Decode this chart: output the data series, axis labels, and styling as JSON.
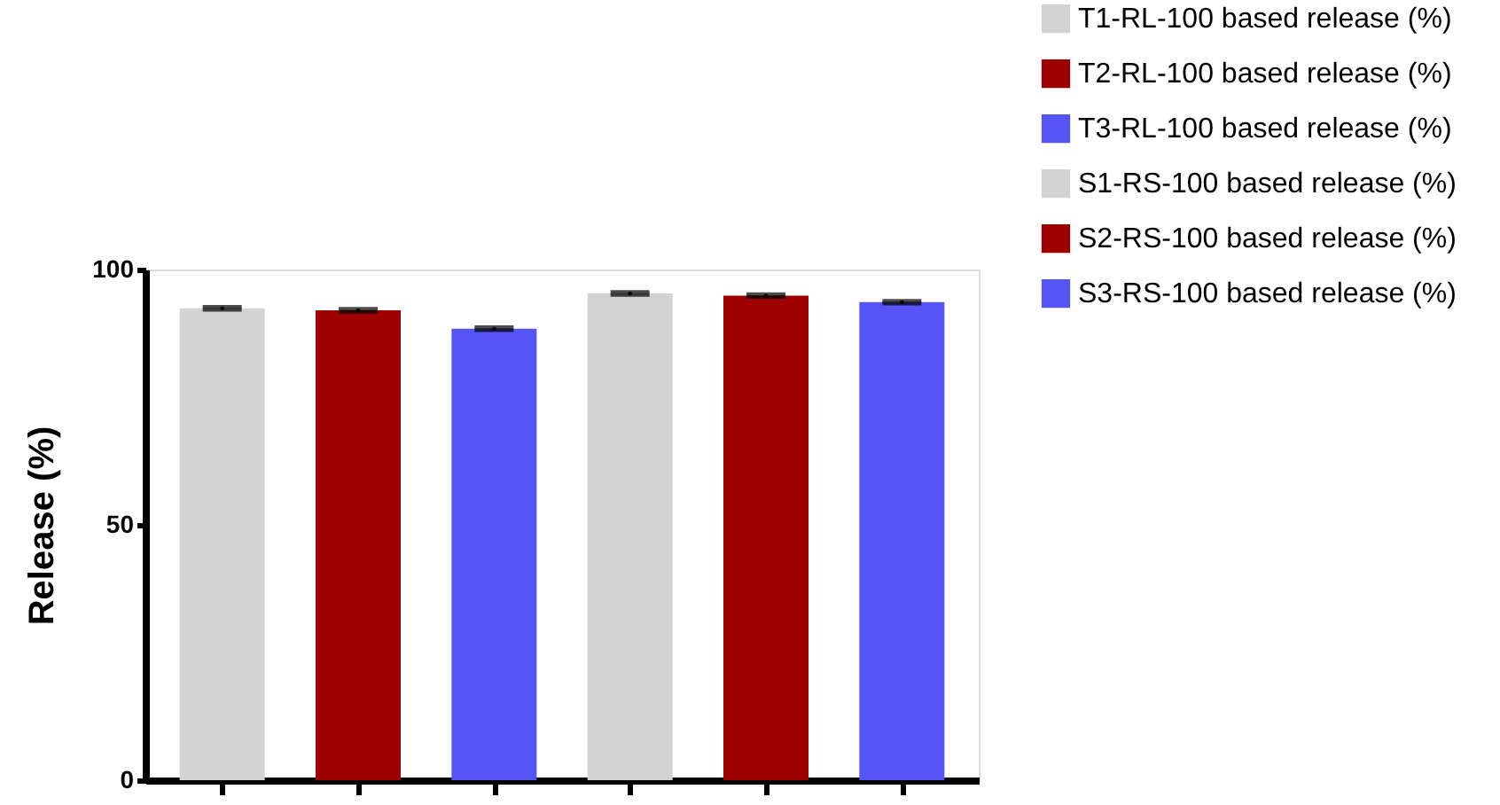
{
  "chart_data": {
    "type": "bar",
    "ylabel": "Release (%)",
    "categories": [
      null,
      null,
      null,
      null,
      null,
      null
    ],
    "series": [
      {
        "name": "T1-RL-100 based release (%)",
        "color": "#d3d3d3",
        "values": [
          92.4,
          null,
          null,
          null,
          null,
          null
        ],
        "errors": [
          0.3,
          null,
          null,
          null,
          null,
          null
        ]
      },
      {
        "name": "T2-RL-100 based release (%)",
        "color": "#9e0000",
        "values": [
          null,
          92.0,
          null,
          null,
          null,
          null
        ],
        "errors": [
          null,
          0.3,
          null,
          null,
          null,
          null
        ]
      },
      {
        "name": "T3-RL-100 based release (%)",
        "color": "#5555f5",
        "values": [
          null,
          null,
          88.4,
          null,
          null,
          null
        ],
        "errors": [
          null,
          null,
          0.3,
          null,
          null,
          null
        ]
      },
      {
        "name": "S1-RS-100 based release (%)",
        "color": "#d3d3d3",
        "values": [
          null,
          null,
          null,
          95.3,
          null,
          null
        ],
        "errors": [
          null,
          null,
          null,
          0.3,
          null,
          null
        ]
      },
      {
        "name": "S2-RS-100 based release (%)",
        "color": "#9e0000",
        "values": [
          null,
          null,
          null,
          null,
          94.9,
          null
        ],
        "errors": [
          null,
          null,
          null,
          null,
          0.3,
          null
        ]
      },
      {
        "name": "S3-RS-100 based release (%)",
        "color": "#5555f5",
        "values": [
          null,
          null,
          null,
          null,
          null,
          93.6
        ],
        "errors": [
          null,
          null,
          null,
          null,
          null,
          0.3
        ]
      }
    ],
    "ylim": [
      0,
      100
    ],
    "yticks": [
      0,
      50,
      100
    ],
    "grid": false,
    "legend": "top right"
  }
}
